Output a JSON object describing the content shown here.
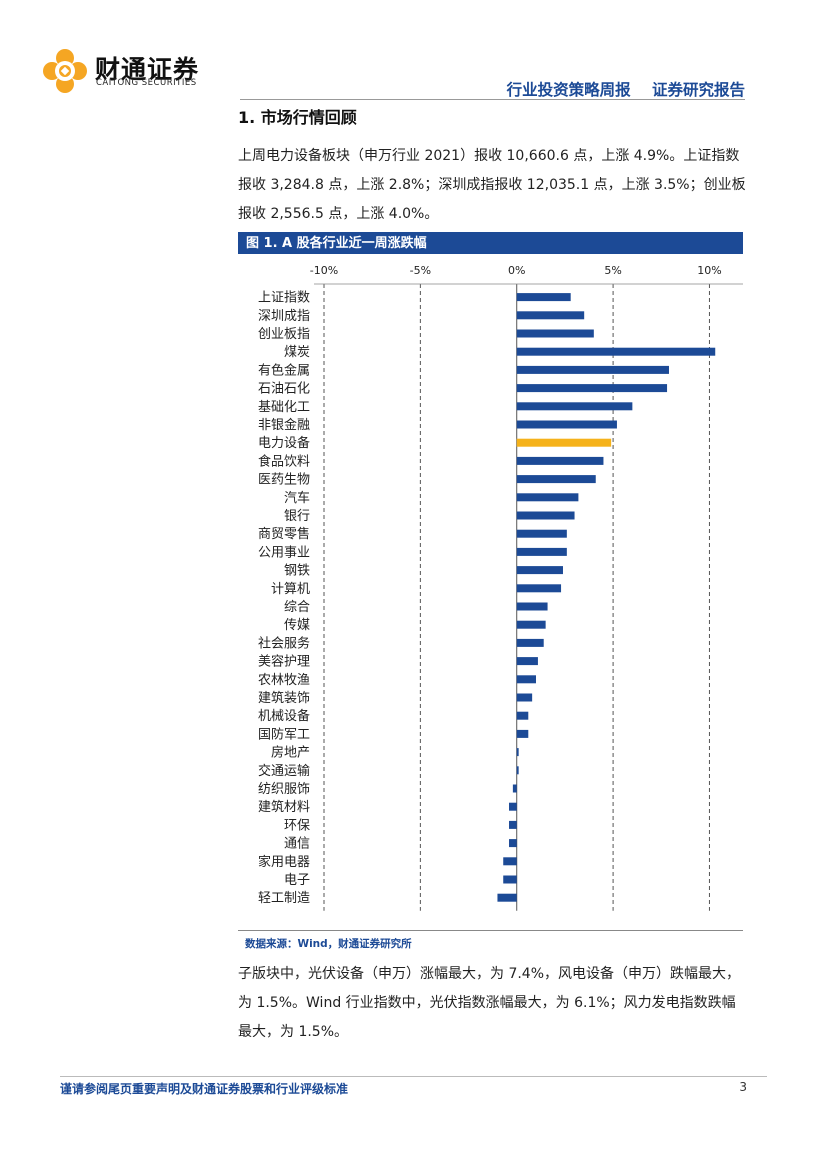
{
  "header": {
    "brand_cn": "财通证券",
    "brand_en": "CAITONG SECURITIES",
    "report_type": "行业投资策略周报",
    "report_category": "证券研究报告"
  },
  "section": {
    "title": "1.  市场行情回顾"
  },
  "intro_paragraph": "上周电力设备板块（申万行业 2021）报收 10,660.6 点，上涨 4.9%。上证指数报收 3,284.8 点，上涨 2.8%；深圳成指报收 12,035.1 点，上涨 3.5%；创业板报收 2,556.5 点，上涨 4.0%。",
  "figure": {
    "title": "图 1. A 股各行业近一周涨跌幅",
    "source": "数据来源：Wind，财通证券研究所"
  },
  "chart_data": {
    "type": "bar",
    "orientation": "horizontal",
    "title": "图 1. A 股各行业近一周涨跌幅",
    "xlim": [
      -10,
      12
    ],
    "ticks": [
      -10,
      -5,
      0,
      5,
      10
    ],
    "tick_labels": [
      "-10%",
      "-5%",
      "0%",
      "5%",
      "10%"
    ],
    "colors": {
      "default": "#1c4a96",
      "highlight": "#f5b21b"
    },
    "highlight": "电力设备",
    "categories": [
      "上证指数",
      "深圳成指",
      "创业板指",
      "煤炭",
      "有色金属",
      "石油石化",
      "基础化工",
      "非银金融",
      "电力设备",
      "食品饮料",
      "医药生物",
      "汽车",
      "银行",
      "商贸零售",
      "公用事业",
      "钢铁",
      "计算机",
      "综合",
      "传媒",
      "社会服务",
      "美容护理",
      "农林牧渔",
      "建筑装饰",
      "机械设备",
      "国防军工",
      "房地产",
      "交通运输",
      "纺织服饰",
      "建筑材料",
      "环保",
      "通信",
      "家用电器",
      "电子",
      "轻工制造"
    ],
    "values": [
      2.8,
      3.5,
      4.0,
      10.3,
      7.9,
      7.8,
      6.0,
      5.2,
      4.9,
      4.5,
      4.1,
      3.2,
      3.0,
      2.6,
      2.6,
      2.4,
      2.3,
      1.6,
      1.5,
      1.4,
      1.1,
      1.0,
      0.8,
      0.6,
      0.6,
      0.1,
      0.1,
      -0.2,
      -0.4,
      -0.4,
      -0.4,
      -0.7,
      -0.7,
      -1.0
    ]
  },
  "body_paragraph": "子版块中，光伏设备（申万）涨幅最大，为 7.4%，风电设备（申万）跌幅最大，为 1.5%。Wind 行业指数中，光伏指数涨幅最大，为 6.1%；风力发电指数跌幅最大，为 1.5%。",
  "footer": {
    "disclaimer": "谨请参阅尾页重要声明及财通证券股票和行业评级标准",
    "page_number": "3"
  }
}
